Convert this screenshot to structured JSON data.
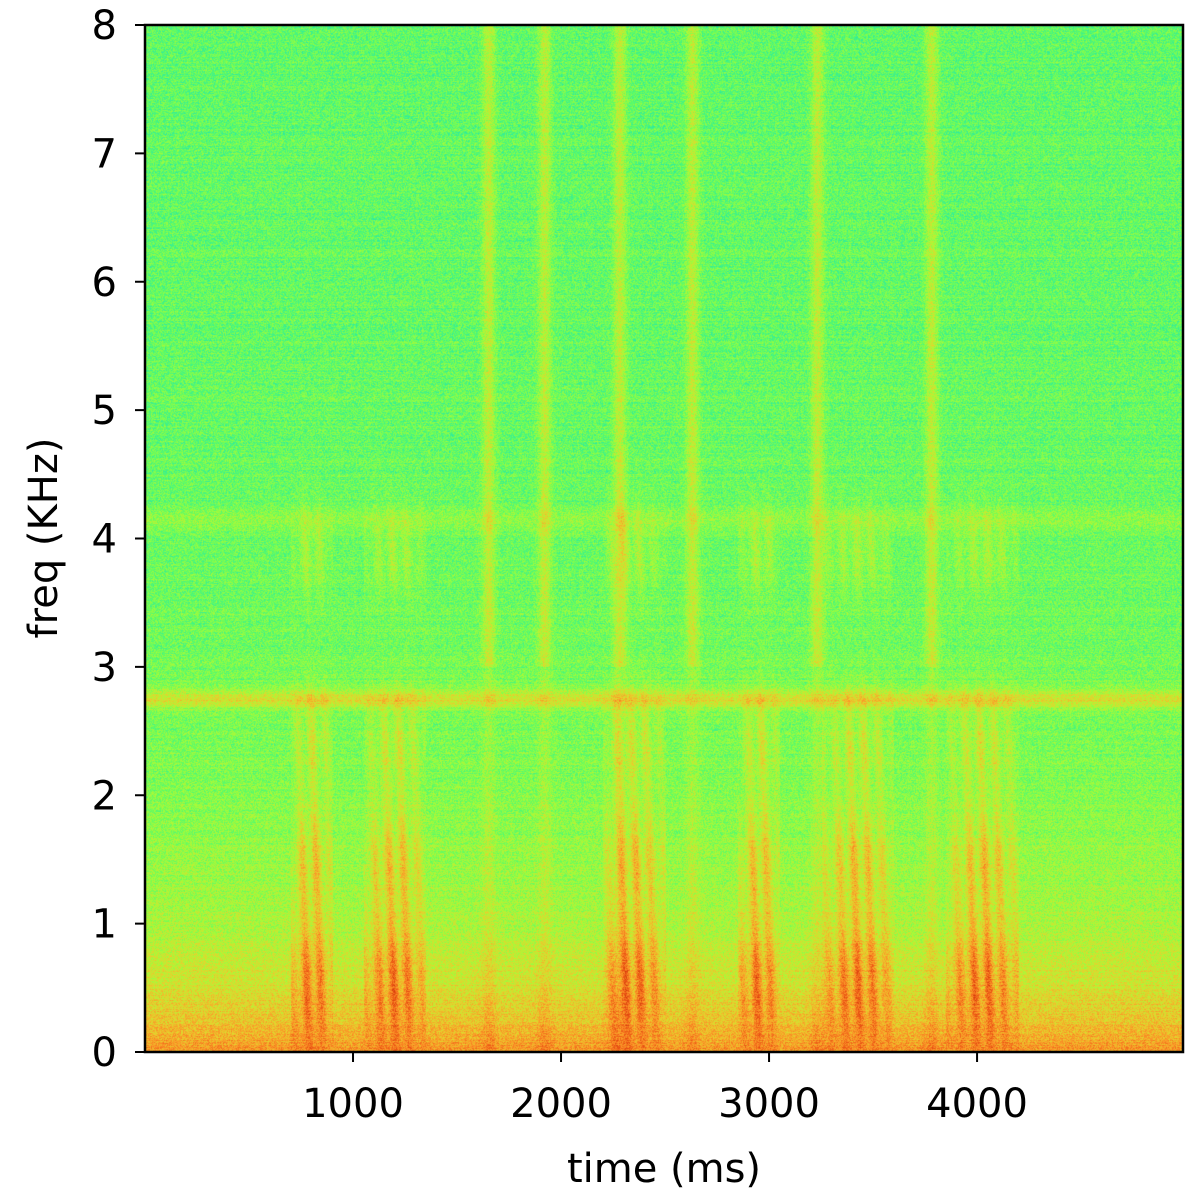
{
  "chart_data": {
    "type": "heatmap",
    "title": "",
    "xlabel": "time (ms)",
    "ylabel": "freq (KHz)",
    "xlim": [
      0,
      4990
    ],
    "ylim": [
      0,
      8
    ],
    "x_ticks": [
      "1000",
      "2000",
      "3000",
      "4000"
    ],
    "x_tick_values": [
      1000,
      2000,
      3000,
      4000
    ],
    "y_ticks": [
      "0",
      "1",
      "2",
      "3",
      "4",
      "5",
      "6",
      "7",
      "8"
    ],
    "y_tick_values": [
      0,
      1,
      2,
      3,
      4,
      5,
      6,
      7,
      8
    ],
    "colormap": "turbo",
    "grid": false,
    "colors": {
      "low": "#1fc8e0",
      "mid": "#a8f040",
      "high": "#f08020",
      "peak": "#a81808"
    },
    "features": {
      "horizontal_band_khz": [
        2.75,
        4.15
      ],
      "low_freq_energy_khz": [
        0,
        1.2
      ],
      "vertical_bursts_ms": [
        1650,
        1920,
        2280,
        2630,
        3230,
        3780
      ],
      "speech_segments_ms": [
        [
          700,
          900
        ],
        [
          1050,
          1350
        ],
        [
          2200,
          2500
        ],
        [
          2850,
          3050
        ],
        [
          3250,
          3600
        ],
        [
          3850,
          4200
        ]
      ]
    }
  }
}
